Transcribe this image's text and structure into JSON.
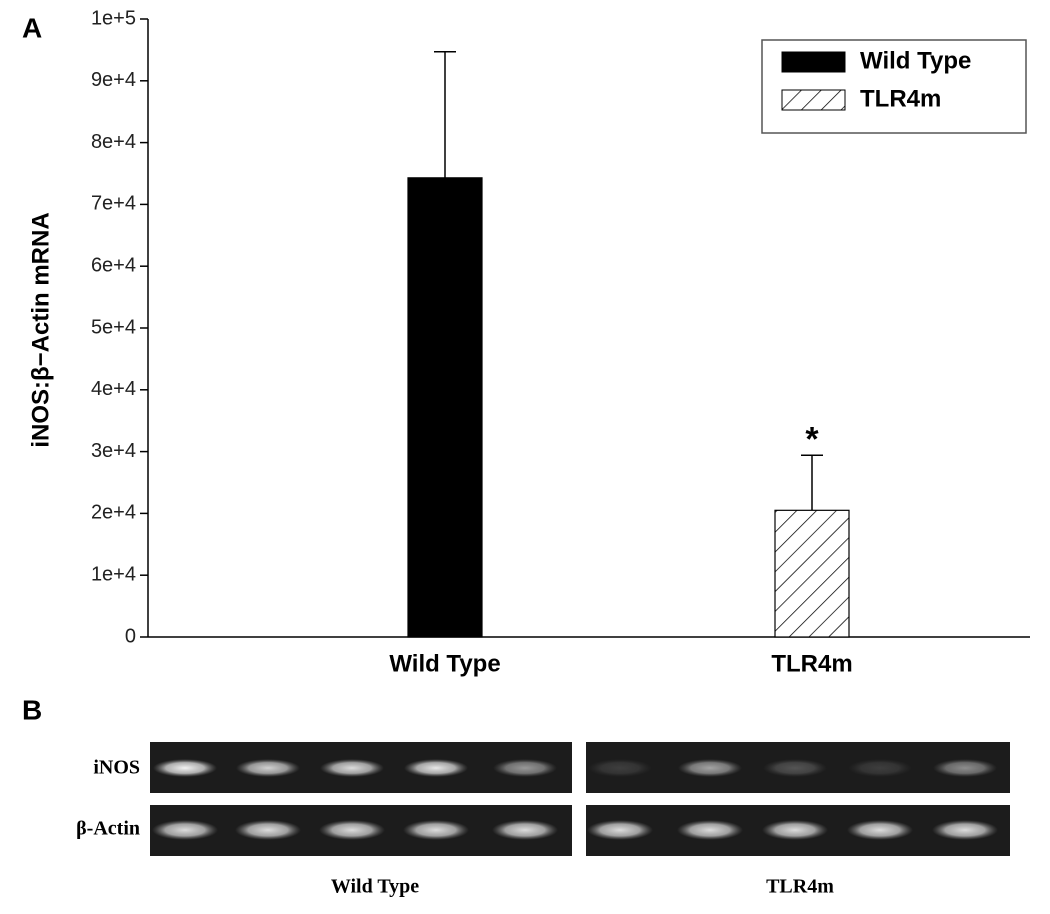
{
  "panel_labels": {
    "a": "A",
    "b": "B"
  },
  "chart_data": {
    "type": "bar",
    "y_label": "iNOS:β−Actin mRNA",
    "categories": [
      "Wild Type",
      "TLR4m"
    ],
    "series": [
      {
        "name": "Wild Type",
        "color": "#000000",
        "fill": "solid",
        "values": [
          74300,
          null
        ],
        "errors": [
          20400,
          null
        ]
      },
      {
        "name": "TLR4m",
        "color": "#000000",
        "fill": "hatch",
        "values": [
          null,
          20500
        ],
        "errors": [
          null,
          8900
        ]
      }
    ],
    "annotation": "*",
    "ylim": [
      0,
      100000
    ],
    "yticks": [
      0,
      {
        "value": 10000,
        "label": "1e+4"
      },
      {
        "value": 20000,
        "label": "2e+4"
      },
      {
        "value": 30000,
        "label": "3e+4"
      },
      {
        "value": 40000,
        "label": "4e+4"
      },
      {
        "value": 50000,
        "label": "5e+4"
      },
      {
        "value": 60000,
        "label": "6e+4"
      },
      {
        "value": 70000,
        "label": "7e+4"
      },
      {
        "value": 80000,
        "label": "8e+4"
      },
      {
        "value": 90000,
        "label": "9e+4"
      },
      {
        "value": 100000,
        "label": "1e+5"
      }
    ],
    "grid": false,
    "legend": "upper right"
  },
  "gel": {
    "row_labels": [
      "iNOS",
      "β-Actin"
    ],
    "group_labels": [
      "Wild Type",
      "TLR4m"
    ]
  }
}
